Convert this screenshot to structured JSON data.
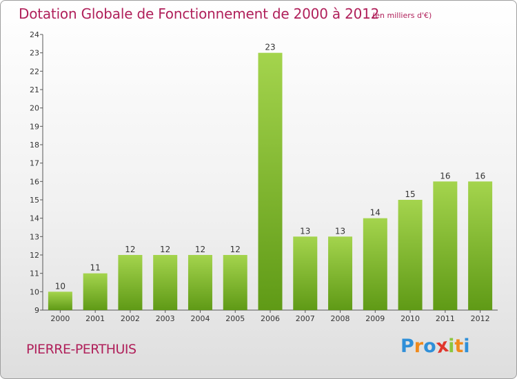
{
  "header": {
    "title": "Dotation Globale de Fonctionnement de 2000 à 2012",
    "subtitle": "(en milliers d'€)"
  },
  "footer": {
    "commune": "PIERRE-PERTHUIS",
    "logo_letters": [
      "P",
      "r",
      "o",
      "x",
      "i",
      "t",
      "i"
    ]
  },
  "colors": {
    "title": "#b0205a",
    "bar_top": "#a4d44d",
    "bar_bottom": "#5f9a16",
    "logo": [
      "#2f8fd8",
      "#f08a1c",
      "#2f8fd8",
      "#e0362c",
      "#8cc63f",
      "#f08a1c",
      "#2f8fd8"
    ]
  },
  "chart_data": {
    "type": "bar",
    "categories": [
      "2000",
      "2001",
      "2002",
      "2003",
      "2004",
      "2005",
      "2006",
      "2007",
      "2008",
      "2009",
      "2010",
      "2011",
      "2012"
    ],
    "values": [
      10,
      11,
      12,
      12,
      12,
      12,
      23,
      13,
      13,
      14,
      15,
      16,
      16
    ],
    "data_labels": [
      "10",
      "11",
      "12",
      "12",
      "12",
      "12",
      "23",
      "13",
      "13",
      "14",
      "15",
      "16",
      "16"
    ],
    "ylim": [
      9,
      24
    ],
    "yticks": [
      "9",
      "10",
      "11",
      "12",
      "13",
      "14",
      "15",
      "16",
      "17",
      "18",
      "19",
      "20",
      "21",
      "22",
      "23",
      "24"
    ],
    "grid": false,
    "legend": "none"
  }
}
